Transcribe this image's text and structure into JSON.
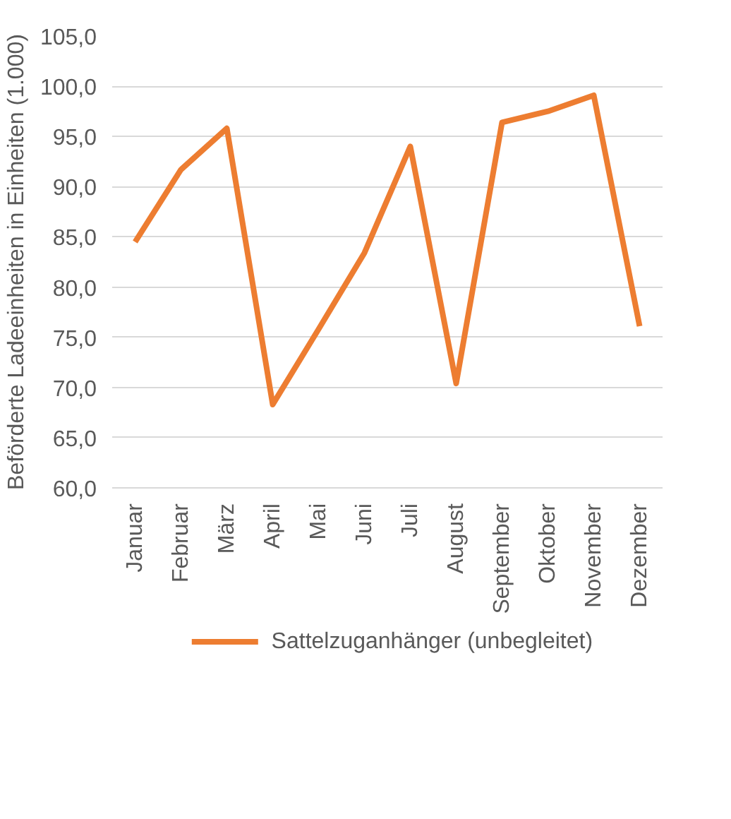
{
  "chart_data": {
    "type": "line",
    "ylabel": "Beförderte Ladeeinheiten in Einheiten (1.000)",
    "categories": [
      "Januar",
      "Februar",
      "März",
      "April",
      "Mai",
      "Juni",
      "Juli",
      "August",
      "September",
      "Oktober",
      "November",
      "Dezember"
    ],
    "series": [
      {
        "name": "Sattelzuganhänger (unbegleitet)",
        "color": "#ed7d31",
        "values": [
          84.5,
          91.7,
          95.8,
          68.3,
          75.8,
          83.4,
          94.0,
          70.4,
          96.4,
          97.5,
          99.1,
          76.1
        ]
      }
    ],
    "ylim": [
      60,
      105
    ],
    "yticks": [
      {
        "value": 60,
        "label": "60,0"
      },
      {
        "value": 65,
        "label": "65,0"
      },
      {
        "value": 70,
        "label": "70,0"
      },
      {
        "value": 75,
        "label": "75,0"
      },
      {
        "value": 80,
        "label": "80,0"
      },
      {
        "value": 85,
        "label": "85,0"
      },
      {
        "value": 90,
        "label": "90,0"
      },
      {
        "value": 95,
        "label": "95,0"
      },
      {
        "value": 100,
        "label": "100,0"
      },
      {
        "value": 105,
        "label": "105,0"
      }
    ],
    "grid": "y",
    "legend": "bottom",
    "marker": "none",
    "line_style": "solid"
  }
}
